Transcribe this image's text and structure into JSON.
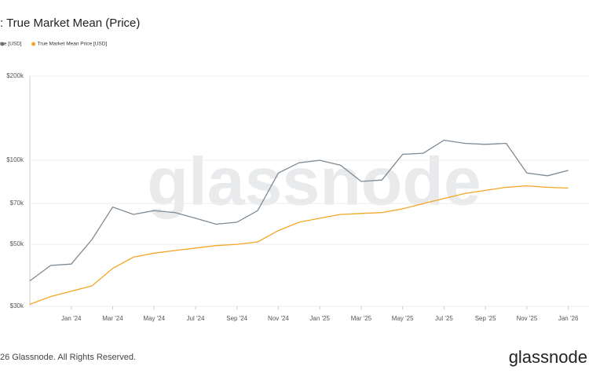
{
  "chart_data": {
    "type": "line",
    "title": ": True Market Mean (Price)",
    "x": [
      "2023-11",
      "2023-12",
      "2024-01",
      "2024-02",
      "2024-03",
      "2024-04",
      "2024-05",
      "2024-06",
      "2024-07",
      "2024-08",
      "2024-09",
      "2024-10",
      "2024-11",
      "2024-12",
      "2025-01",
      "2025-02",
      "2025-03",
      "2025-04",
      "2025-05",
      "2025-06",
      "2025-07",
      "2025-08",
      "2025-09",
      "2025-10",
      "2025-11",
      "2025-12",
      "2026-01"
    ],
    "series": [
      {
        "name": "rice [USD]",
        "color": "#7d8a94",
        "values": [
          37000,
          42000,
          42500,
          52000,
          68000,
          64000,
          66000,
          65000,
          62000,
          59000,
          60000,
          66000,
          90000,
          98000,
          100000,
          96000,
          84000,
          85000,
          105000,
          106000,
          118000,
          115000,
          114000,
          115000,
          90000,
          88000,
          92000
        ]
      },
      {
        "name": "True Market Mean Price [USD]",
        "color": "#f5a623",
        "values": [
          30500,
          32500,
          34000,
          35500,
          41000,
          45000,
          46500,
          47500,
          48500,
          49500,
          50000,
          51000,
          56000,
          60000,
          62000,
          64000,
          64500,
          65000,
          67000,
          70000,
          73000,
          76000,
          78000,
          80000,
          81000,
          80000,
          79500
        ]
      }
    ],
    "xlim": [
      "2023-11",
      "2026-02"
    ],
    "xticks": [
      {
        "value": "2024-01",
        "label": "Jan '24"
      },
      {
        "value": "2024-03",
        "label": "Mar '24"
      },
      {
        "value": "2024-05",
        "label": "May '24"
      },
      {
        "value": "2024-07",
        "label": "Jul '24"
      },
      {
        "value": "2024-09",
        "label": "Sep '24"
      },
      {
        "value": "2024-11",
        "label": "Nov '24"
      },
      {
        "value": "2025-01",
        "label": "Jan '25"
      },
      {
        "value": "2025-03",
        "label": "Mar '25"
      },
      {
        "value": "2025-05",
        "label": "May '25"
      },
      {
        "value": "2025-07",
        "label": "Jul '25"
      },
      {
        "value": "2025-09",
        "label": "Sep '25"
      },
      {
        "value": "2025-11",
        "label": "Nov '25"
      },
      {
        "value": "2026-01",
        "label": "Jan '26"
      }
    ],
    "ylim": [
      30000,
      200000
    ],
    "yticks": [
      {
        "value": 30000,
        "label": "$30k"
      },
      {
        "value": 50000,
        "label": "$50k"
      },
      {
        "value": 70000,
        "label": "$70k"
      },
      {
        "value": 100000,
        "label": "$100k"
      },
      {
        "value": 200000,
        "label": "$200k"
      }
    ],
    "log_scale": true,
    "grid": true,
    "watermark": "glassnode",
    "footer": "26 Glassnode. All Rights Reserved.",
    "brand": "glassnode"
  }
}
